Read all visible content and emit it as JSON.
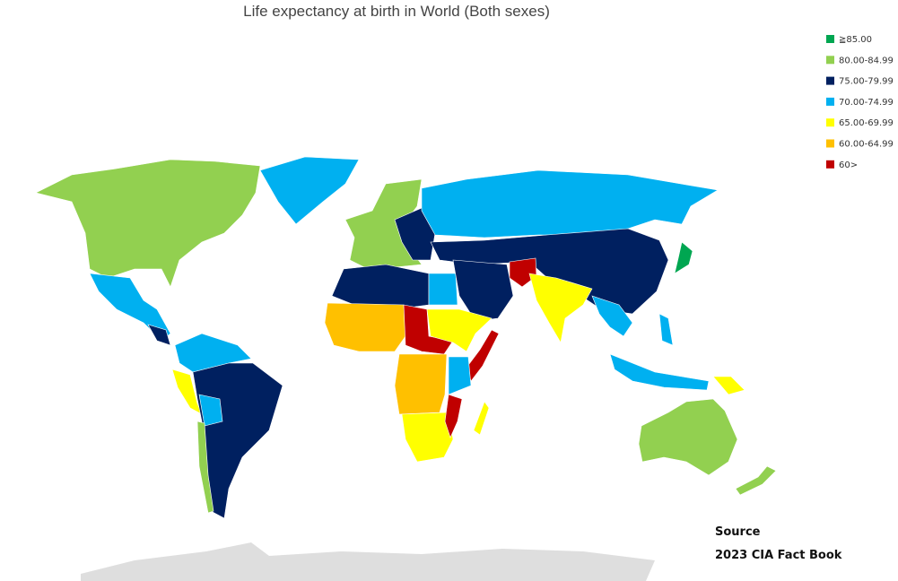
{
  "title": "Life expectancy at birth in World (Both sexes)",
  "legend": [
    {
      "label": "≧85.00",
      "color": "#00a651"
    },
    {
      "label": "80.00-84.99",
      "color": "#92d050"
    },
    {
      "label": "75.00-79.99",
      "color": "#002060"
    },
    {
      "label": "70.00-74.99",
      "color": "#00b0f0"
    },
    {
      "label": "65.00-69.99",
      "color": "#ffff00"
    },
    {
      "label": "60.00-64.99",
      "color": "#ffc000"
    },
    {
      "label": "60>",
      "color": "#c00000"
    }
  ],
  "source": {
    "heading": "Source",
    "text": "2023 CIA Fact Book"
  }
}
